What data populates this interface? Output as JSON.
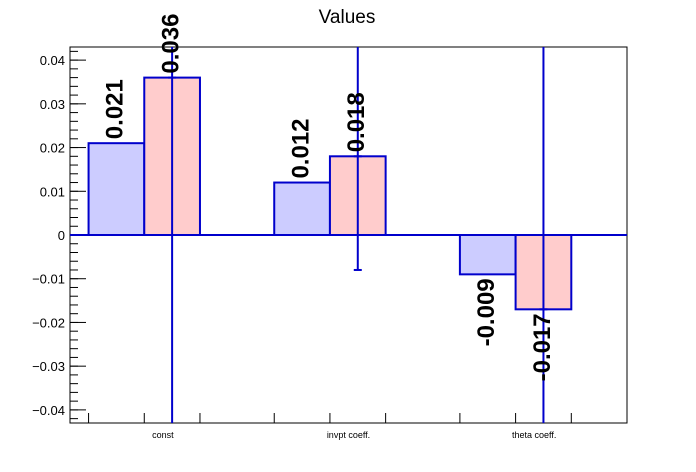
{
  "chart_data": {
    "type": "bar",
    "title": "Values",
    "xlabel": "",
    "ylabel": "",
    "categories": [
      "const",
      "invpt coeff.",
      "theta coeff."
    ],
    "ylim": [
      -0.043,
      0.043
    ],
    "yticks": [
      -0.04,
      -0.03,
      -0.02,
      -0.01,
      0,
      0.01,
      0.02,
      0.03,
      0.04
    ],
    "ytick_labels": [
      "−0.04",
      "−0.03",
      "−0.02",
      "−0.01",
      "0",
      "0.01",
      "0.02",
      "0.03",
      "0.04"
    ],
    "series": [
      {
        "values": [
          0.021,
          0.012,
          -0.009
        ],
        "labels": [
          "0.021",
          "0.012",
          "-0.009"
        ],
        "fill": "#ccccff",
        "stroke": "#0000cc"
      },
      {
        "values": [
          0.036,
          0.018,
          -0.017
        ],
        "labels": [
          "0.036",
          "0.018",
          "-0.017"
        ],
        "fill": "#ffcccc",
        "stroke": "#0000cc",
        "error_low": [
          -0.043,
          -0.008,
          -0.043
        ],
        "error_high": [
          0.043,
          0.043,
          0.043
        ]
      }
    ],
    "grid": false,
    "legend": "none"
  }
}
